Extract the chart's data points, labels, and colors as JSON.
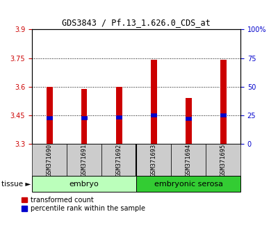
{
  "title": "GDS3843 / Pf.13_1.626.0_CDS_at",
  "samples": [
    "GSM371690",
    "GSM371691",
    "GSM371692",
    "GSM371693",
    "GSM371694",
    "GSM371695"
  ],
  "bar_tops": [
    3.6,
    3.59,
    3.6,
    3.74,
    3.54,
    3.74
  ],
  "bar_bottom": 3.3,
  "blue_markers": [
    3.435,
    3.435,
    3.44,
    3.45,
    3.433,
    3.45
  ],
  "groups": [
    {
      "label": "embryo",
      "start": 0,
      "end": 3,
      "color": "#bbffbb"
    },
    {
      "label": "embryonic serosa",
      "start": 3,
      "end": 6,
      "color": "#33cc33"
    }
  ],
  "tissue_label": "tissue",
  "ylim_left": [
    3.3,
    3.9
  ],
  "yticks_left": [
    3.3,
    3.45,
    3.6,
    3.75,
    3.9
  ],
  "yticks_right_labels": [
    "0",
    "25",
    "50",
    "75",
    "100%"
  ],
  "yticks_right_vals": [
    3.3,
    3.45,
    3.6,
    3.75,
    3.9
  ],
  "bar_color": "#cc0000",
  "blue_color": "#0000cc",
  "left_tick_color": "#cc0000",
  "right_tick_color": "#0000cc",
  "grid_color": "#000000",
  "bg_color": "#ffffff",
  "sample_bg_color": "#cccccc",
  "legend_red_label": "transformed count",
  "legend_blue_label": "percentile rank within the sample"
}
